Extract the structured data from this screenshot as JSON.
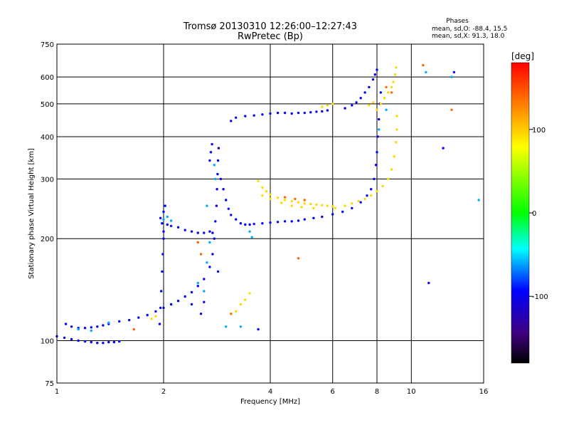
{
  "chart_data": {
    "type": "scatter",
    "title": "Tromsø 20130310 12:26:00–12:27:43",
    "subtitle": "RwPretec (Bp)",
    "xlabel": "Frequency [MHz]",
    "ylabel": "Stationary phase Virtual Height [km]",
    "x_scale": "log",
    "y_scale": "log",
    "xlim": [
      1,
      16
    ],
    "ylim": [
      75,
      750
    ],
    "x_ticks": [
      1,
      2,
      4,
      6,
      8,
      10,
      16
    ],
    "y_ticks": [
      75,
      100,
      200,
      300,
      400,
      500,
      600,
      750
    ],
    "grid": true,
    "phase_info": {
      "heading": "Phases",
      "o_line": "mean, sd,O: -88.4, 15.5",
      "x_line": "mean, sd,X:  91.3, 18.0"
    },
    "colorbar": {
      "title": "[deg]",
      "range": [
        -180,
        180
      ],
      "ticks": [
        100,
        0,
        -100
      ],
      "colors": [
        "#ff0000",
        "#ff8000",
        "#ffff00",
        "#00ff00",
        "#00ffff",
        "#0000ff",
        "#400080",
        "#000000"
      ]
    },
    "series": [
      {
        "phase": -95,
        "points": [
          [
            1.0,
            103
          ],
          [
            1.05,
            102
          ],
          [
            1.1,
            101
          ],
          [
            1.15,
            100
          ],
          [
            1.2,
            99.5
          ],
          [
            1.25,
            99
          ],
          [
            1.3,
            98.5
          ],
          [
            1.35,
            98.5
          ],
          [
            1.4,
            99
          ],
          [
            1.45,
            99
          ],
          [
            1.5,
            99.5
          ],
          [
            1.06,
            112
          ],
          [
            1.1,
            110
          ],
          [
            1.15,
            109
          ],
          [
            1.2,
            109
          ],
          [
            1.25,
            109.5
          ],
          [
            1.3,
            110
          ],
          [
            1.35,
            111
          ],
          [
            1.4,
            112
          ],
          [
            1.5,
            114
          ],
          [
            1.6,
            115
          ],
          [
            1.7,
            117
          ],
          [
            1.8,
            119
          ],
          [
            1.9,
            122
          ],
          [
            2.0,
            125
          ],
          [
            2.1,
            128
          ],
          [
            2.2,
            131
          ],
          [
            2.3,
            135
          ],
          [
            2.4,
            139
          ],
          [
            2.5,
            145
          ],
          [
            2.6,
            152
          ],
          [
            2.7,
            165
          ],
          [
            2.75,
            180
          ],
          [
            2.78,
            200
          ],
          [
            2.8,
            225
          ],
          [
            2.82,
            250
          ],
          [
            2.83,
            280
          ],
          [
            2.84,
            310
          ],
          [
            2.85,
            340
          ],
          [
            2.86,
            370
          ],
          [
            1.95,
            112
          ],
          [
            1.96,
            125
          ],
          [
            1.97,
            140
          ],
          [
            1.98,
            160
          ],
          [
            1.99,
            180
          ],
          [
            2.0,
            200
          ],
          [
            2.0,
            210
          ],
          [
            1.98,
            222
          ],
          [
            1.96,
            230
          ],
          [
            2.05,
            220
          ],
          [
            2.1,
            218
          ],
          [
            2.2,
            216
          ],
          [
            2.3,
            212
          ],
          [
            2.4,
            210
          ],
          [
            2.5,
            208
          ],
          [
            2.6,
            208
          ],
          [
            2.7,
            210
          ],
          [
            2.75,
            208
          ],
          [
            2.0,
            240
          ],
          [
            2.02,
            250
          ],
          [
            2.7,
            340
          ],
          [
            2.72,
            360
          ],
          [
            2.74,
            380
          ],
          [
            2.9,
            300
          ],
          [
            2.95,
            280
          ],
          [
            3.0,
            260
          ],
          [
            3.05,
            245
          ],
          [
            3.1,
            235
          ],
          [
            3.2,
            228
          ],
          [
            3.3,
            222
          ],
          [
            3.4,
            220
          ],
          [
            3.5,
            220
          ],
          [
            3.6,
            221
          ],
          [
            3.8,
            222
          ],
          [
            4.0,
            223
          ],
          [
            4.2,
            224
          ],
          [
            4.4,
            225
          ],
          [
            4.6,
            225
          ],
          [
            4.8,
            226
          ],
          [
            5.0,
            228
          ],
          [
            5.3,
            230
          ],
          [
            5.6,
            232
          ],
          [
            6.0,
            236
          ],
          [
            6.4,
            240
          ],
          [
            6.8,
            246
          ],
          [
            7.2,
            256
          ],
          [
            7.5,
            268
          ],
          [
            7.7,
            280
          ],
          [
            7.85,
            300
          ],
          [
            7.95,
            330
          ],
          [
            8.0,
            360
          ],
          [
            8.05,
            400
          ],
          [
            8.1,
            450
          ],
          [
            8.15,
            500
          ],
          [
            8.2,
            540
          ],
          [
            3.1,
            445
          ],
          [
            3.2,
            455
          ],
          [
            3.4,
            460
          ],
          [
            3.6,
            462
          ],
          [
            3.8,
            465
          ],
          [
            4.0,
            468
          ],
          [
            4.2,
            470
          ],
          [
            4.4,
            470
          ],
          [
            4.6,
            468
          ],
          [
            4.8,
            470
          ],
          [
            5.0,
            470
          ],
          [
            5.2,
            472
          ],
          [
            5.4,
            474
          ],
          [
            5.6,
            475
          ],
          [
            5.8,
            478
          ],
          [
            6.5,
            485
          ],
          [
            6.8,
            495
          ],
          [
            7.0,
            505
          ],
          [
            7.2,
            520
          ],
          [
            7.4,
            540
          ],
          [
            7.6,
            560
          ],
          [
            7.8,
            590
          ],
          [
            7.9,
            610
          ],
          [
            8.0,
            630
          ],
          [
            2.85,
            160
          ],
          [
            2.6,
            130
          ],
          [
            2.4,
            128
          ],
          [
            2.55,
            120
          ],
          [
            3.7,
            108
          ],
          [
            13.2,
            620
          ],
          [
            12.3,
            370
          ],
          [
            11.2,
            148
          ]
        ]
      },
      {
        "phase": -60,
        "points": [
          [
            1.15,
            108
          ],
          [
            1.25,
            107
          ],
          [
            1.4,
            113
          ],
          [
            2.0,
            228
          ],
          [
            2.05,
            232
          ],
          [
            2.1,
            226
          ],
          [
            2.7,
            195
          ],
          [
            2.65,
            170
          ],
          [
            2.8,
            300
          ],
          [
            2.78,
            330
          ],
          [
            2.65,
            250
          ],
          [
            2.6,
            140
          ],
          [
            2.5,
            148
          ],
          [
            3.0,
            110
          ],
          [
            3.3,
            110
          ],
          [
            3.5,
            210
          ],
          [
            3.55,
            202
          ],
          [
            8.1,
            420
          ],
          [
            8.5,
            480
          ],
          [
            13.0,
            600
          ],
          [
            11.0,
            620
          ],
          [
            15.5,
            260
          ]
        ]
      },
      {
        "phase": 95,
        "points": [
          [
            3.7,
            296
          ],
          [
            3.8,
            283
          ],
          [
            3.9,
            276
          ],
          [
            4.0,
            270
          ],
          [
            4.2,
            264
          ],
          [
            4.4,
            260
          ],
          [
            4.6,
            258
          ],
          [
            4.8,
            256
          ],
          [
            5.0,
            254
          ],
          [
            5.2,
            253
          ],
          [
            5.4,
            252
          ],
          [
            5.6,
            251
          ],
          [
            5.8,
            250
          ],
          [
            6.0,
            249
          ],
          [
            3.8,
            268
          ],
          [
            4.0,
            262
          ],
          [
            4.3,
            255
          ],
          [
            4.6,
            250
          ],
          [
            4.9,
            248
          ],
          [
            5.3,
            246
          ],
          [
            6.1,
            246
          ],
          [
            6.5,
            250
          ],
          [
            6.8,
            254
          ],
          [
            7.1,
            258
          ],
          [
            7.4,
            262
          ],
          [
            7.7,
            268
          ],
          [
            8.0,
            276
          ],
          [
            8.3,
            286
          ],
          [
            8.6,
            300
          ],
          [
            8.8,
            320
          ],
          [
            8.95,
            350
          ],
          [
            9.05,
            385
          ],
          [
            9.1,
            420
          ],
          [
            9.1,
            460
          ],
          [
            8.0,
            480
          ],
          [
            8.2,
            500
          ],
          [
            8.4,
            520
          ],
          [
            8.6,
            540
          ],
          [
            8.8,
            560
          ],
          [
            8.9,
            580
          ],
          [
            9.0,
            610
          ],
          [
            9.05,
            640
          ],
          [
            7.6,
            495
          ],
          [
            7.8,
            505
          ],
          [
            5.6,
            490
          ],
          [
            5.8,
            495
          ],
          [
            6.0,
            500
          ],
          [
            3.2,
            122
          ],
          [
            3.3,
            128
          ],
          [
            3.4,
            132
          ],
          [
            3.5,
            138
          ],
          [
            1.85,
            116
          ],
          [
            1.9,
            118
          ]
        ]
      },
      {
        "phase": 140,
        "points": [
          [
            4.4,
            265
          ],
          [
            4.7,
            262
          ],
          [
            5.0,
            260
          ],
          [
            8.5,
            560
          ],
          [
            8.8,
            540
          ],
          [
            2.55,
            180
          ],
          [
            2.5,
            195
          ],
          [
            4.8,
            175
          ],
          [
            3.1,
            120
          ],
          [
            1.65,
            108
          ],
          [
            13.0,
            480
          ],
          [
            10.8,
            650
          ]
        ]
      }
    ]
  }
}
